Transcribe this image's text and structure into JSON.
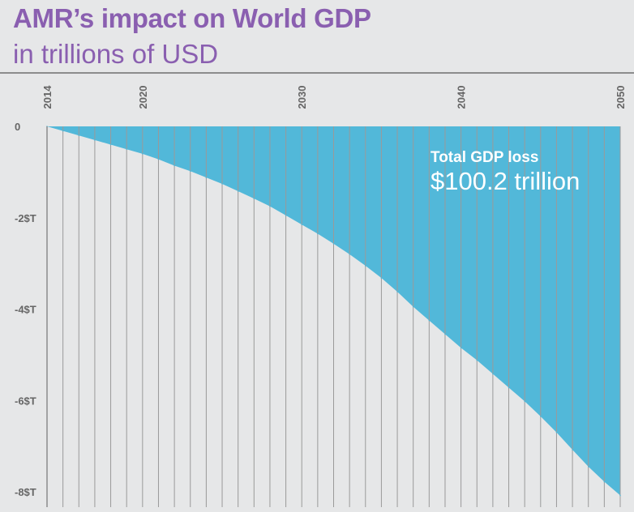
{
  "chart_data": {
    "type": "area",
    "title": "AMR’s impact on World GDP",
    "subtitle": "in trillions of USD",
    "x_tick_labels": [
      "2014",
      "2020",
      "2030",
      "2040",
      "2050"
    ],
    "y_tick_labels": [
      "0",
      "-2$T",
      "-4$T",
      "-6$T",
      "-8$T"
    ],
    "xlim": [
      2014,
      2050
    ],
    "ylim": [
      -8,
      0
    ],
    "x": [
      2014,
      2015,
      2016,
      2017,
      2018,
      2019,
      2020,
      2021,
      2022,
      2023,
      2024,
      2025,
      2026,
      2027,
      2028,
      2029,
      2030,
      2031,
      2032,
      2033,
      2034,
      2035,
      2036,
      2037,
      2038,
      2039,
      2040,
      2041,
      2042,
      2043,
      2044,
      2045,
      2046,
      2047,
      2048,
      2049,
      2050
    ],
    "values": [
      0,
      -0.1,
      -0.2,
      -0.3,
      -0.4,
      -0.5,
      -0.6,
      -0.72,
      -0.86,
      -0.98,
      -1.12,
      -1.26,
      -1.42,
      -1.58,
      -1.75,
      -1.95,
      -2.15,
      -2.35,
      -2.57,
      -2.8,
      -3.05,
      -3.32,
      -3.62,
      -3.95,
      -4.25,
      -4.55,
      -4.85,
      -5.12,
      -5.42,
      -5.72,
      -6.02,
      -6.35,
      -6.7,
      -7.08,
      -7.45,
      -7.78,
      -8.08
    ],
    "annotation_label": "Total GDP loss",
    "annotation_value": "$100.2 trillion",
    "fill_color": "#52b8d9",
    "title_color": "#8a5fb0"
  }
}
